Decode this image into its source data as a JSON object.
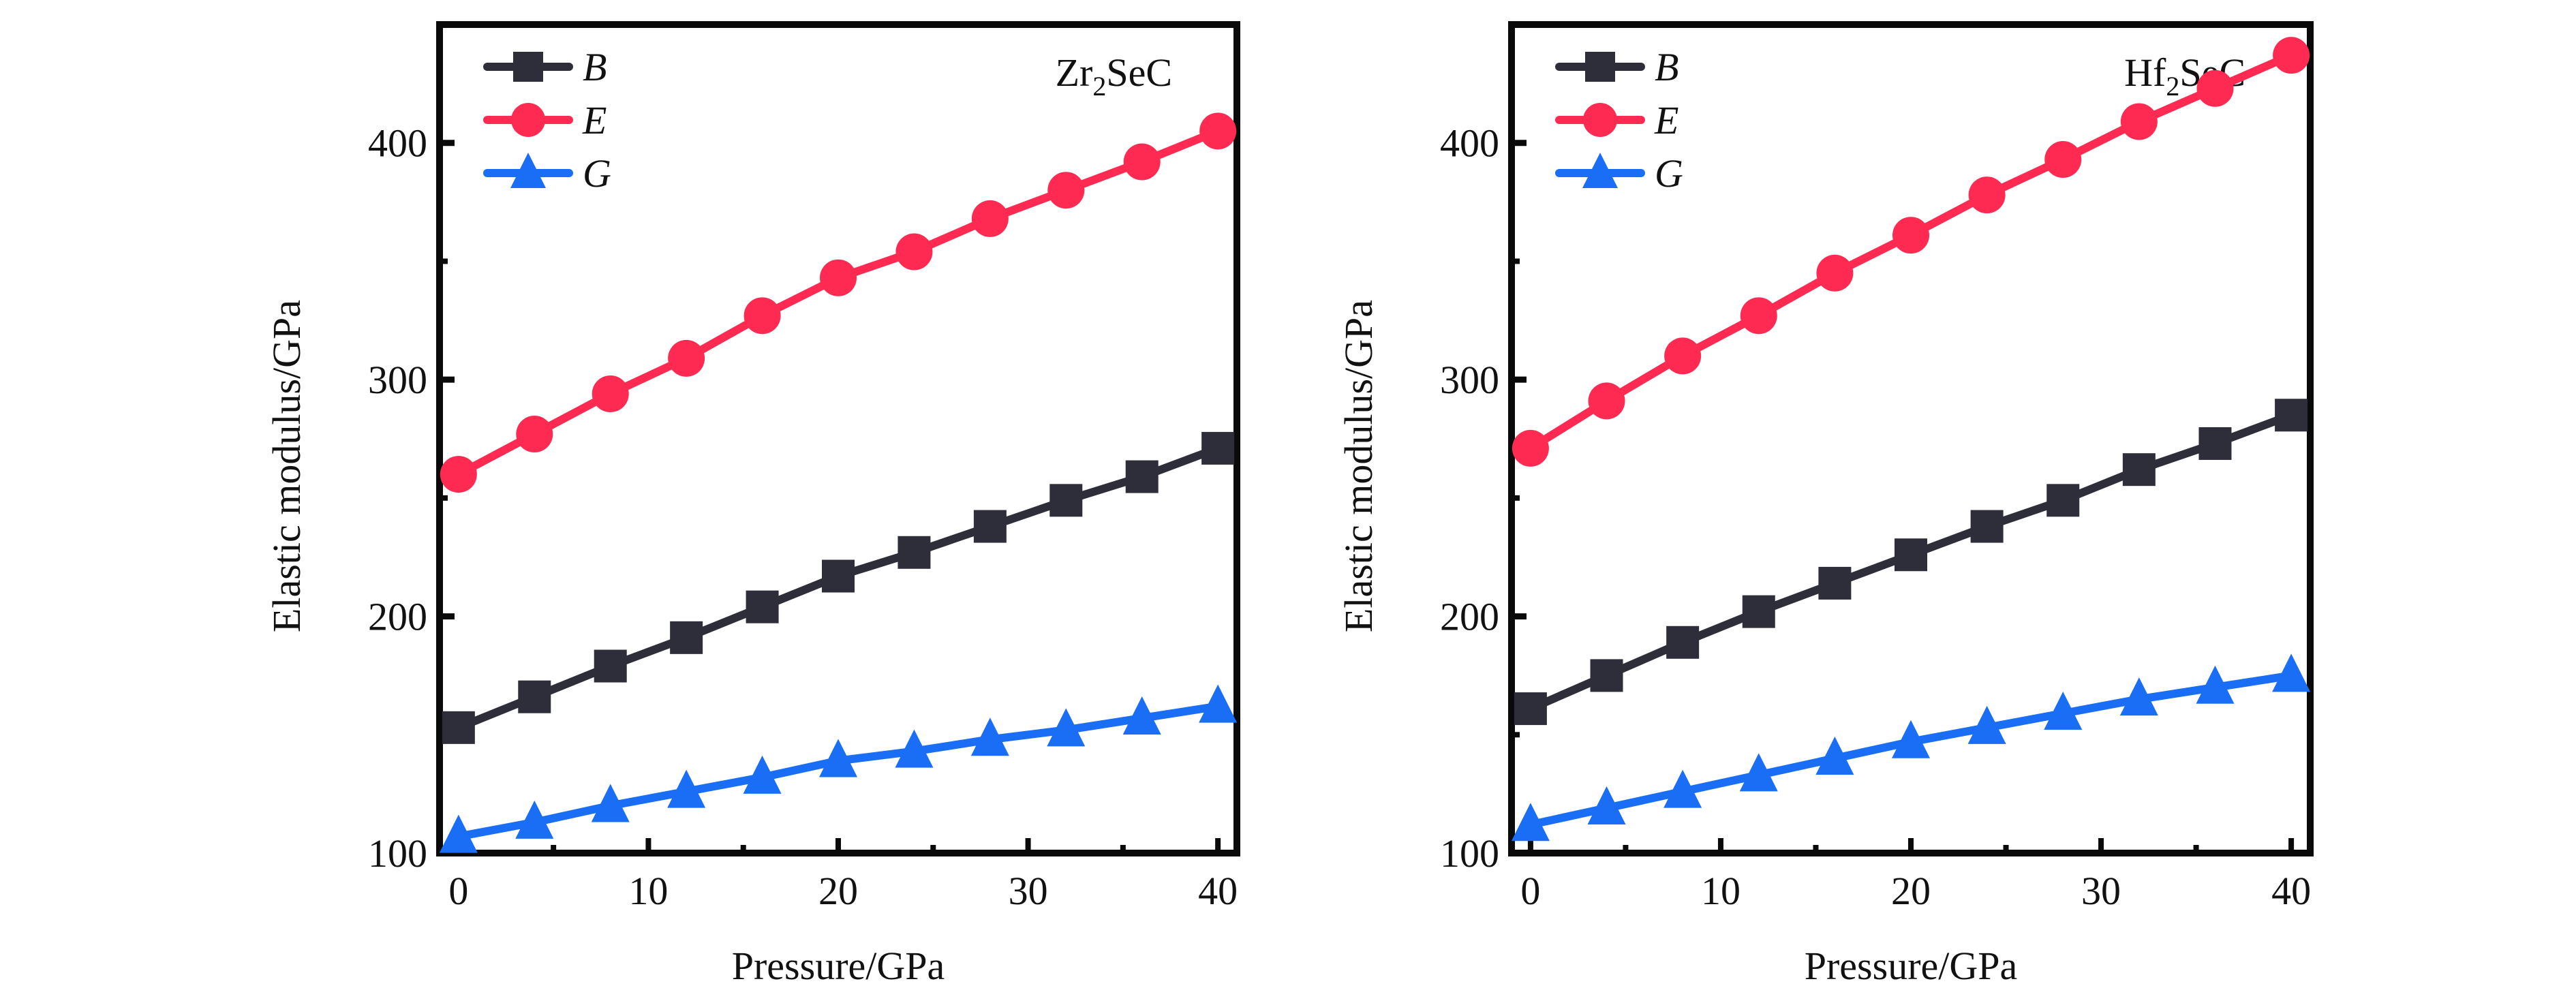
{
  "chart_data": [
    {
      "type": "line",
      "title": "",
      "annotation": {
        "main": "Zr",
        "sub": "2",
        "rest": "SeC"
      },
      "xlabel": "Pressure/GPa",
      "ylabel": "Elastic modulus/GPa",
      "xlim": [
        -1,
        41
      ],
      "ylim": [
        100,
        450
      ],
      "xticks": [
        0,
        10,
        20,
        30,
        40
      ],
      "yticks": [
        100,
        200,
        300,
        400
      ],
      "grid": false,
      "legend_position": "top-left",
      "x": [
        0,
        4,
        8,
        12,
        16,
        20,
        24,
        28,
        32,
        36,
        40
      ],
      "series": [
        {
          "name": "B",
          "marker": "square",
          "color": "#2e2e3a",
          "values": [
            153,
            166,
            179,
            191,
            204,
            217,
            227,
            238,
            249,
            259,
            271
          ]
        },
        {
          "name": "E",
          "marker": "circle",
          "color": "#ff2a52",
          "values": [
            260,
            277,
            294,
            309,
            327,
            343,
            354,
            368,
            380,
            392,
            405
          ]
        },
        {
          "name": "G",
          "marker": "triangle",
          "color": "#1a6ef5",
          "values": [
            107,
            113,
            120,
            126,
            132,
            139,
            143,
            148,
            152,
            157,
            162
          ]
        }
      ]
    },
    {
      "type": "line",
      "title": "",
      "annotation": {
        "main": "Hf",
        "sub": "2",
        "rest": "SeC"
      },
      "xlabel": "Pressure/GPa",
      "ylabel": "Elastic modulus/GPa",
      "xlim": [
        -1,
        41
      ],
      "ylim": [
        100,
        450
      ],
      "xticks": [
        0,
        10,
        20,
        30,
        40
      ],
      "yticks": [
        100,
        200,
        300,
        400
      ],
      "grid": false,
      "legend_position": "top-left",
      "x": [
        0,
        4,
        8,
        12,
        16,
        20,
        24,
        28,
        32,
        36,
        40
      ],
      "series": [
        {
          "name": "B",
          "marker": "square",
          "color": "#2e2e3a",
          "values": [
            161,
            175,
            189,
            202,
            214,
            226,
            238,
            249,
            262,
            273,
            285
          ]
        },
        {
          "name": "E",
          "marker": "circle",
          "color": "#ff2a52",
          "values": [
            271,
            291,
            310,
            327,
            345,
            361,
            378,
            393,
            409,
            423,
            437
          ]
        },
        {
          "name": "G",
          "marker": "triangle",
          "color": "#1a6ef5",
          "values": [
            112,
            119,
            126,
            133,
            140,
            147,
            153,
            159,
            165,
            170,
            175
          ]
        }
      ]
    }
  ]
}
